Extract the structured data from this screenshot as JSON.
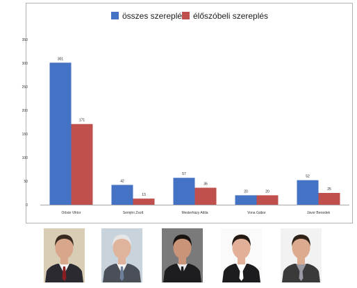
{
  "chart_data": {
    "type": "bar",
    "categories": [
      "Orbán Viktor",
      "Semjén Zsolt",
      "Mesterházy Attila",
      "Vona Gábor",
      "Jávor Benedek"
    ],
    "series": [
      {
        "name": "összes szereplés",
        "values": [
          301,
          42,
          57,
          20,
          52
        ],
        "color": "#4472c4"
      },
      {
        "name": "élőszóbeli szereplés",
        "values": [
          171,
          13,
          36,
          20,
          25
        ],
        "color": "#c0504d"
      }
    ],
    "data_labels": [
      [
        "301",
        "42",
        "57",
        "20",
        "52"
      ],
      [
        "171",
        "13",
        "36",
        "20",
        "25"
      ]
    ],
    "y_ticks": [
      0,
      50,
      100,
      150,
      200,
      250,
      300,
      350
    ],
    "ylim": [
      0,
      350
    ],
    "title": "",
    "xlabel": "",
    "ylabel": "",
    "legend_position": "top-center",
    "grid": false
  },
  "photos": [
    {
      "person": "Orbán Viktor",
      "bg": "#d9cdb5",
      "suit": "#2a2a30",
      "shirt": "#f2f2f2",
      "tie": "#8a1f24",
      "hair": "#3b2a20",
      "skin": "#d8a68a"
    },
    {
      "person": "Semjén Zsolt",
      "bg": "#c9d3dc",
      "suit": "#4a4f58",
      "shirt": "#f5f5f5",
      "tie": "#6d7f99",
      "hair": "#e6e6e6",
      "skin": "#e0b49c"
    },
    {
      "person": "Mesterházy Attila",
      "bg": "#7a7a7a",
      "suit": "#1d1d1f",
      "shirt": "#e8e8e8",
      "tie": "#1d1d1f",
      "hair": "#1a1410",
      "skin": "#c99478"
    },
    {
      "person": "Vona Gábor",
      "bg": "#fafafa",
      "suit": "#1c1c1e",
      "shirt": "#ffffff",
      "tie": "#ffffff",
      "hair": "#241a14",
      "skin": "#e2b098"
    },
    {
      "person": "Jávor Benedek",
      "bg": "#f2f2f2",
      "suit": "#3a3a3a",
      "shirt": "#9a9aa4",
      "tie": "#9a9aa4",
      "hair": "#2e2219",
      "skin": "#dcaa8e"
    }
  ]
}
